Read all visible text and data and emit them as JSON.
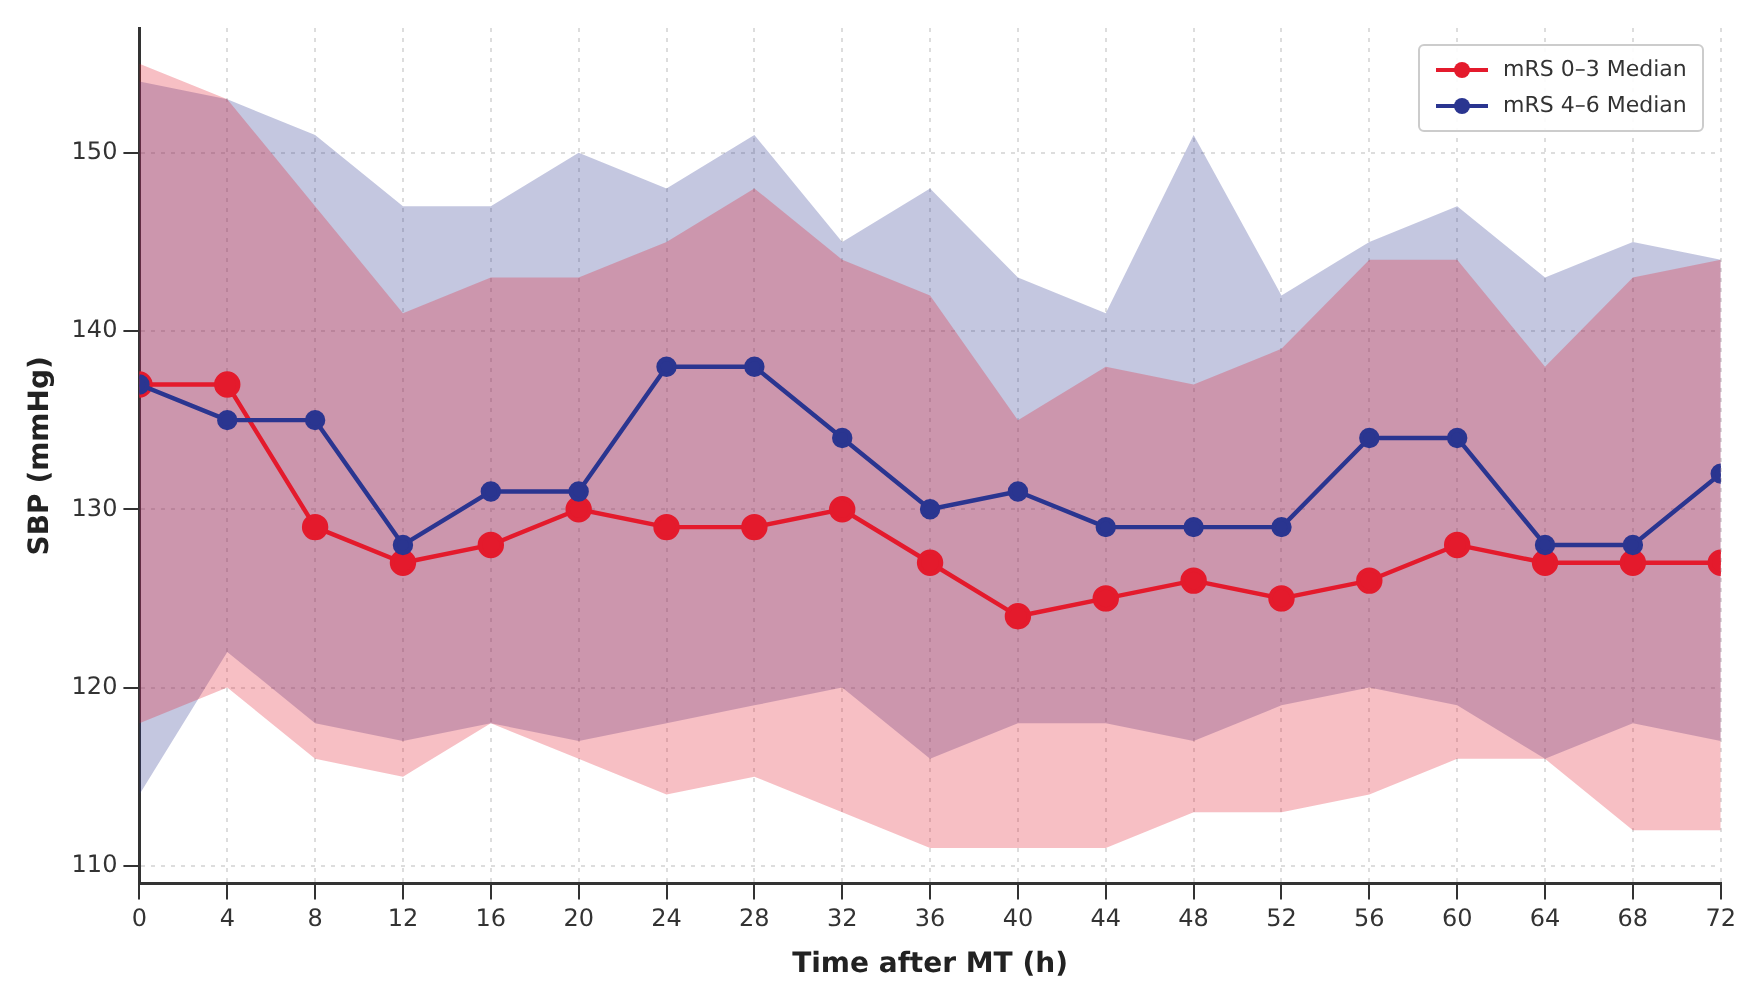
{
  "chart_data": {
    "type": "line",
    "xlabel": "Time after MT (h)",
    "ylabel": "SBP (mmHg)",
    "x": [
      0,
      4,
      8,
      12,
      16,
      20,
      24,
      28,
      32,
      36,
      40,
      44,
      48,
      52,
      56,
      60,
      64,
      68,
      72
    ],
    "series": [
      {
        "name": "mRS 0–3 Median",
        "color": "#e41a2c",
        "values": [
          137,
          137,
          129,
          127,
          128,
          130,
          129,
          129,
          130,
          127,
          124,
          125,
          126,
          125,
          126,
          128,
          127,
          127,
          127
        ],
        "lower": [
          118,
          120,
          116,
          115,
          118,
          116,
          114,
          115,
          113,
          111,
          111,
          111,
          113,
          113,
          114,
          116,
          116,
          112,
          112
        ],
        "upper": [
          155,
          153,
          147,
          141,
          143,
          143,
          145,
          148,
          144,
          142,
          135,
          138,
          137,
          139,
          144,
          144,
          138,
          143,
          144
        ]
      },
      {
        "name": "mRS 4–6 Median",
        "color": "#2a3590",
        "values": [
          137,
          135,
          135,
          128,
          131,
          131,
          138,
          138,
          134,
          130,
          131,
          129,
          129,
          129,
          134,
          134,
          128,
          128,
          132
        ],
        "lower": [
          114,
          122,
          118,
          117,
          118,
          117,
          118,
          119,
          120,
          116,
          118,
          118,
          117,
          119,
          120,
          119,
          116,
          118,
          117
        ],
        "upper": [
          154,
          153,
          151,
          147,
          147,
          150,
          148,
          151,
          145,
          148,
          143,
          141,
          151,
          142,
          145,
          147,
          143,
          145,
          144
        ]
      }
    ],
    "xlim": [
      0,
      72
    ],
    "xticks": [
      0,
      4,
      8,
      12,
      16,
      20,
      24,
      28,
      32,
      36,
      40,
      44,
      48,
      52,
      56,
      60,
      64,
      68,
      72
    ],
    "ylim": [
      109,
      157
    ],
    "yticks": [
      110,
      120,
      130,
      140,
      150
    ],
    "grid": true,
    "legend": "top right",
    "marker": "circle",
    "line_style": "solid"
  }
}
